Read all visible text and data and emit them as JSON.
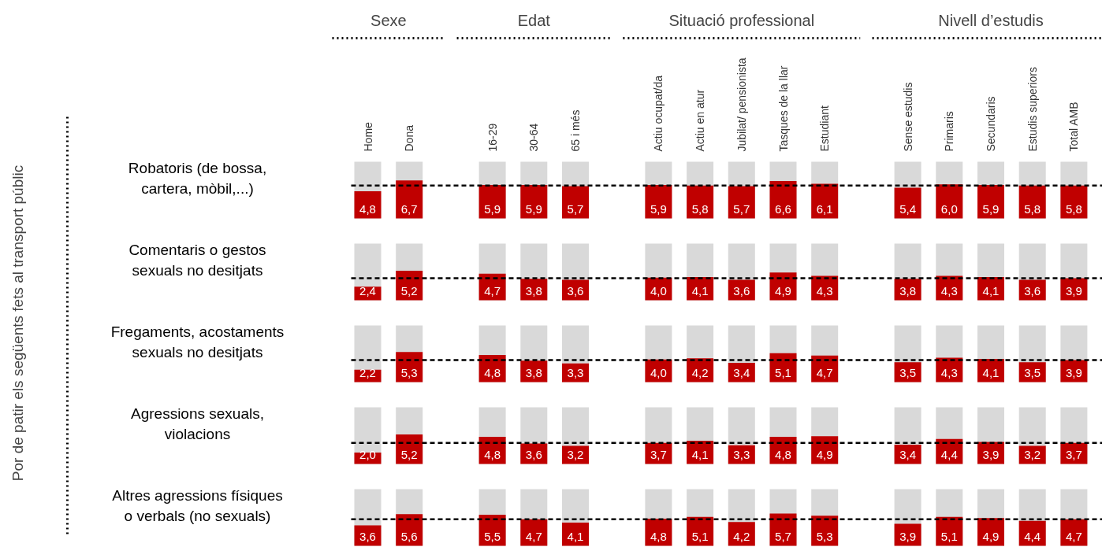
{
  "chart_data": [
    {
      "type": "bar",
      "title": "Robatoris (de bossa, cartera, mòbil,...)",
      "ylabel": "Por de patir els següents fets al transport públic",
      "annotations": [
        "Sexe",
        "Edat",
        "Situació professional",
        "Nivell d’estudis"
      ],
      "tick_labels": "x",
      "categories": [
        "Home",
        "Dona",
        null,
        "16-29",
        "30-64",
        "65 i més",
        null,
        "Actiu ocupat/da",
        "Actiu en atur",
        "Jubilat/ pensionista",
        "Tasques de la llar",
        "Estudiant",
        null,
        "Sense estudis",
        "Primaris",
        "Secundaris",
        "Estudis superiors",
        "Total AMB"
      ],
      "color": "#c00000",
      "ylim": [
        0,
        10
      ],
      "values": [
        4.8,
        6.7,
        null,
        5.9,
        5.9,
        5.7,
        null,
        5.9,
        5.8,
        5.7,
        6.6,
        6.1,
        null,
        5.4,
        6.0,
        5.9,
        5.8,
        5.8
      ],
      "value_labels": [
        "4,8",
        "6,7",
        null,
        "5,9",
        "5,9",
        "5,7",
        null,
        "5,9",
        "5,8",
        "5,7",
        "6,6",
        "6,1",
        null,
        "5,4",
        "6,0",
        "5,9",
        "5,8",
        "5,8"
      ],
      "ref_lines": [
        {
          "axis": "y",
          "value": 5.8,
          "line_style": "dashed",
          "color": "#000000"
        }
      ]
    },
    {
      "type": "bar",
      "title": "Comentaris o gestos sexuals no desitjats",
      "tick_labels": false,
      "categories": [
        null,
        null,
        null,
        null,
        null,
        null,
        null,
        null,
        null,
        null,
        null,
        null,
        null,
        null,
        null,
        null,
        null,
        null
      ],
      "color": "#c00000",
      "ylim": [
        0,
        10
      ],
      "values": [
        2.4,
        5.2,
        null,
        4.7,
        3.8,
        3.6,
        null,
        4.0,
        4.1,
        3.6,
        4.9,
        4.3,
        null,
        3.8,
        4.3,
        4.1,
        3.6,
        3.9
      ],
      "value_labels": [
        "2,4",
        "5,2",
        null,
        "4,7",
        "3,8",
        "3,6",
        null,
        "4,0",
        "4,1",
        "3,6",
        "4,9",
        "4,3",
        null,
        "3,8",
        "4,3",
        "4,1",
        "3,6",
        "3,9"
      ],
      "ref_lines": [
        {
          "axis": "y",
          "value": 3.9,
          "line_style": "dashed",
          "color": "#000000"
        }
      ]
    },
    {
      "type": "bar",
      "title": "Fregaments, acostaments sexuals no desitjats",
      "tick_labels": false,
      "categories": [
        null,
        null,
        null,
        null,
        null,
        null,
        null,
        null,
        null,
        null,
        null,
        null,
        null,
        null,
        null,
        null,
        null,
        null
      ],
      "color": "#c00000",
      "ylim": [
        0,
        10
      ],
      "values": [
        2.2,
        5.3,
        null,
        4.8,
        3.8,
        3.3,
        null,
        4.0,
        4.2,
        3.4,
        5.1,
        4.7,
        null,
        3.5,
        4.3,
        4.1,
        3.5,
        3.9
      ],
      "value_labels": [
        "2,2",
        "5,3",
        null,
        "4,8",
        "3,8",
        "3,3",
        null,
        "4,0",
        "4,2",
        "3,4",
        "5,1",
        "4,7",
        null,
        "3,5",
        "4,3",
        "4,1",
        "3,5",
        "3,9"
      ],
      "ref_lines": [
        {
          "axis": "y",
          "value": 3.9,
          "line_style": "dashed",
          "color": "#000000"
        }
      ]
    },
    {
      "type": "bar",
      "title": "Agressions sexuals, violacions",
      "tick_labels": false,
      "categories": [
        null,
        null,
        null,
        null,
        null,
        null,
        null,
        null,
        null,
        null,
        null,
        null,
        null,
        null,
        null,
        null,
        null,
        null
      ],
      "color": "#c00000",
      "ylim": [
        0,
        10
      ],
      "values": [
        2.0,
        5.2,
        null,
        4.8,
        3.6,
        3.2,
        null,
        3.7,
        4.1,
        3.3,
        4.8,
        4.9,
        null,
        3.4,
        4.4,
        3.9,
        3.2,
        3.7
      ],
      "value_labels": [
        "2,0",
        "5,2",
        null,
        "4,8",
        "3,6",
        "3,2",
        null,
        "3,7",
        "4,1",
        "3,3",
        "4,8",
        "4,9",
        null,
        "3,4",
        "4,4",
        "3,9",
        "3,2",
        "3,7"
      ],
      "ref_lines": [
        {
          "axis": "y",
          "value": 3.7,
          "line_style": "dashed",
          "color": "#000000"
        }
      ]
    },
    {
      "type": "bar",
      "title": "Altres agressions físiques o verbals (no sexuals)",
      "tick_labels": false,
      "categories": [
        null,
        null,
        null,
        null,
        null,
        null,
        null,
        null,
        null,
        null,
        null,
        null,
        null,
        null,
        null,
        null,
        null,
        null
      ],
      "color": "#c00000",
      "ylim": [
        0,
        10
      ],
      "values": [
        3.6,
        5.6,
        null,
        5.5,
        4.7,
        4.1,
        null,
        4.8,
        5.1,
        4.2,
        5.7,
        5.3,
        null,
        3.9,
        5.1,
        4.9,
        4.4,
        4.7
      ],
      "value_labels": [
        "3,6",
        "5,6",
        null,
        "5,5",
        "4,7",
        "4,1",
        null,
        "4,8",
        "5,1",
        "4,2",
        "5,7",
        "5,3",
        null,
        "3,9",
        "5,1",
        "4,9",
        "4,4",
        "4,7"
      ],
      "ref_lines": [
        {
          "axis": "y",
          "value": 4.7,
          "line_style": "dashed",
          "color": "#000000"
        }
      ]
    }
  ]
}
